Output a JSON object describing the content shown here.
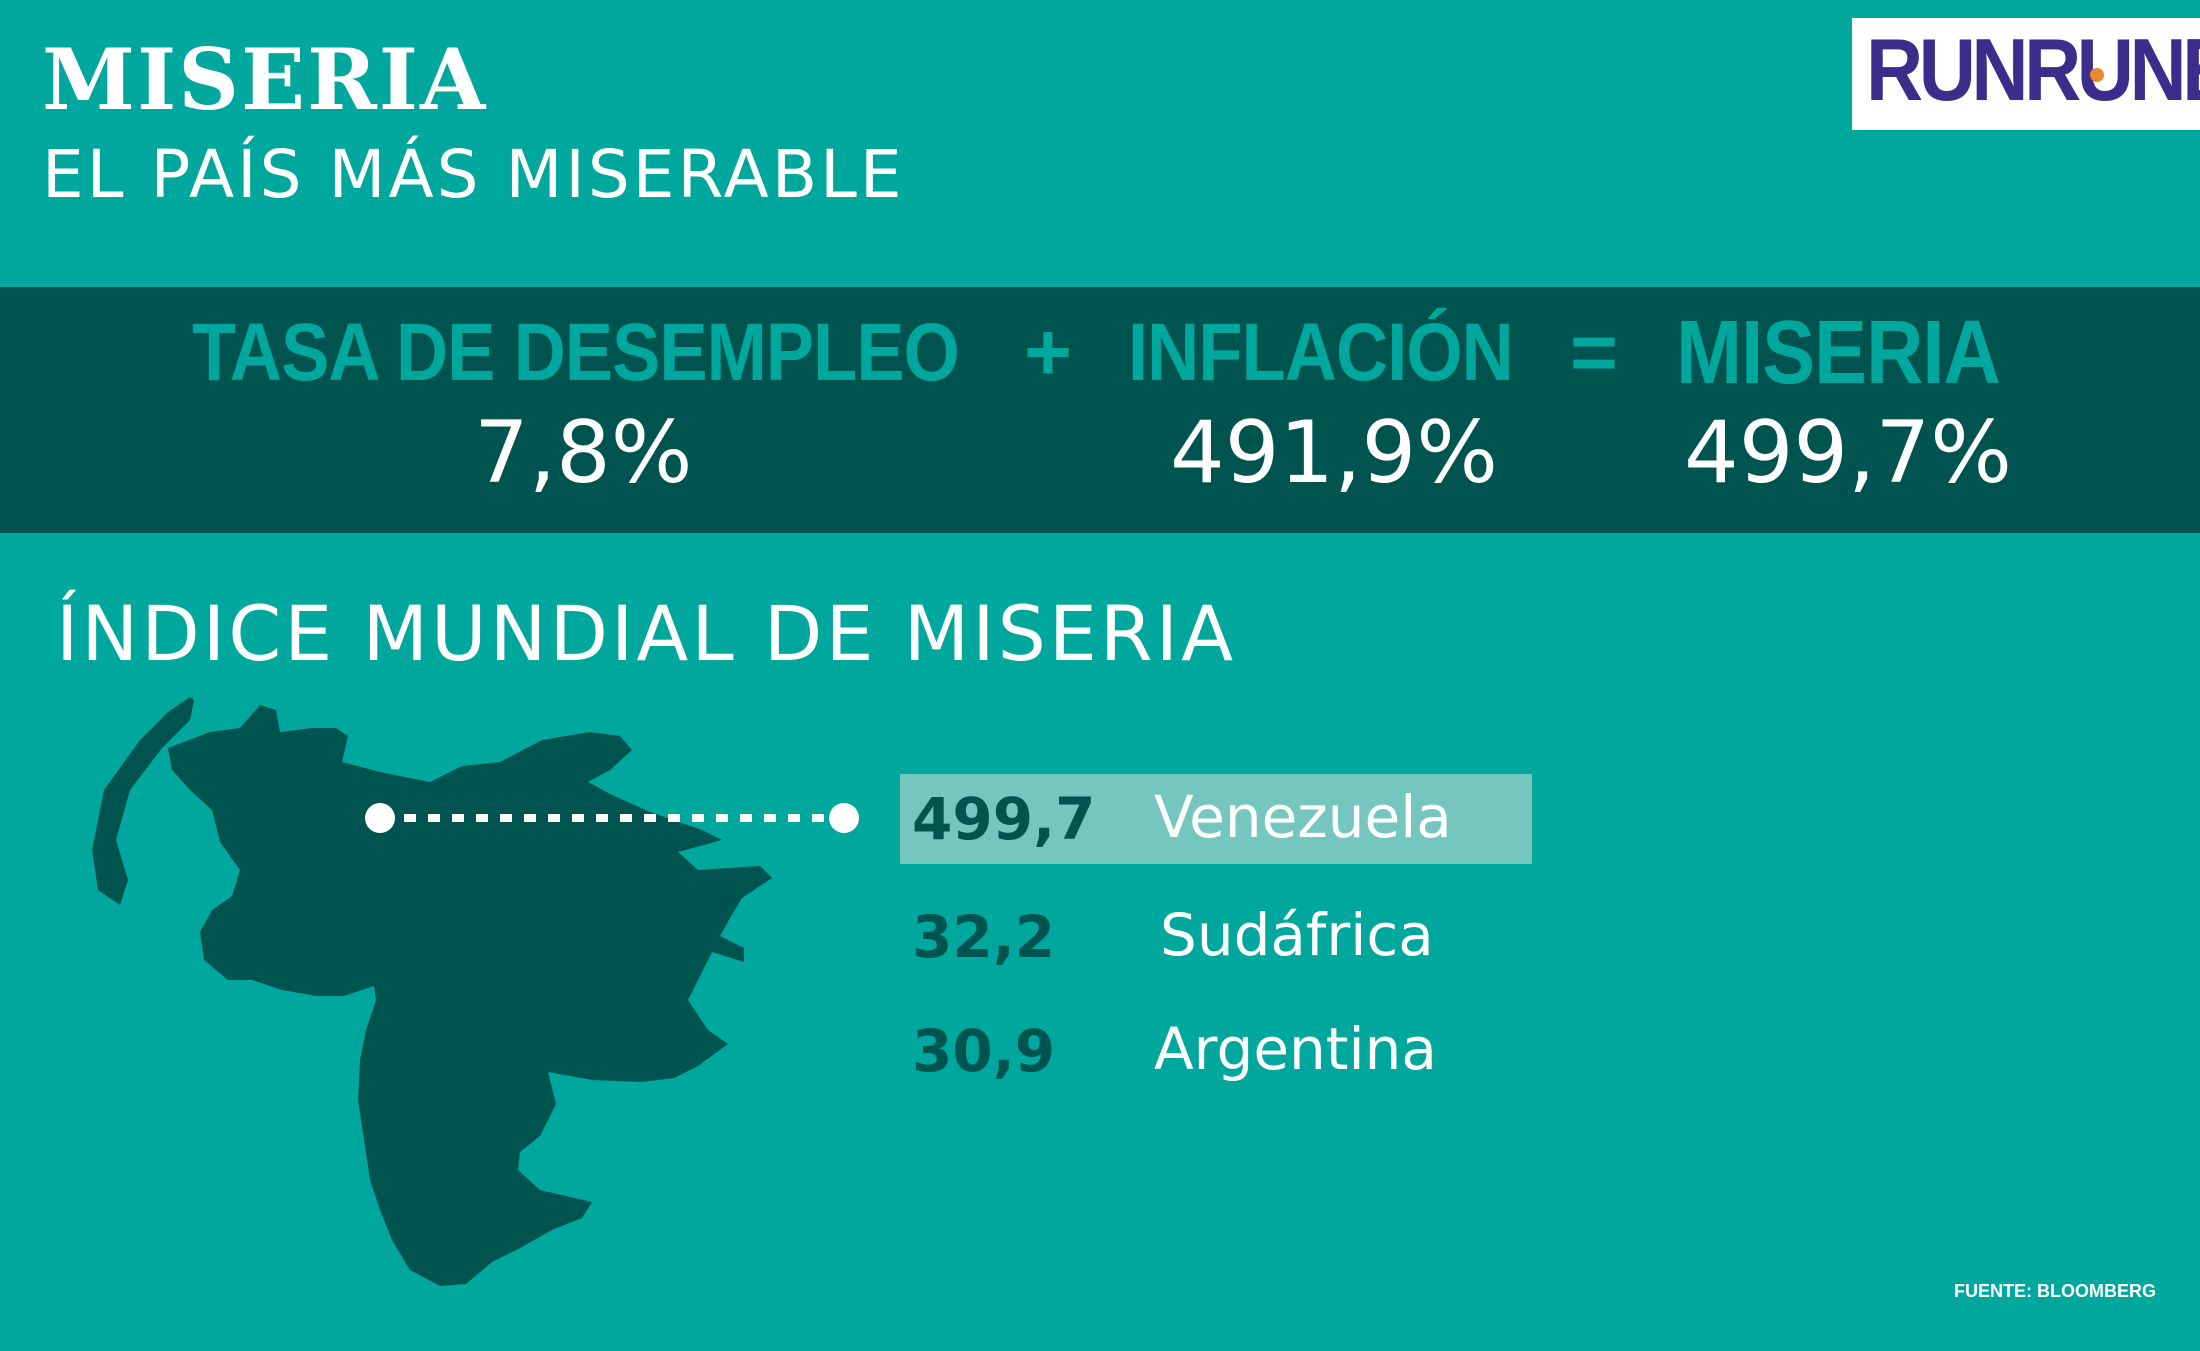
{
  "header": {
    "title": "MISERIA",
    "subtitle": "EL PAÍS MÁS MISERABLE"
  },
  "logo": {
    "text": "RUNRUNES",
    "colors": {
      "text": "#3a2d8c",
      "dot": "#e8882f",
      "background": "#ffffff"
    }
  },
  "equation": {
    "unemployment_label": "TASA DE DESEMPLEO",
    "plus_sign": "+",
    "inflation_label": "INFLACIÓN",
    "equals_sign": "=",
    "misery_label": "MISERIA",
    "unemployment_value": "7,8%",
    "inflation_value": "491,9%",
    "misery_value": "499,7%"
  },
  "ranking": {
    "title": "ÍNDICE MUNDIAL DE MISERIA",
    "items": [
      {
        "score": "499,7",
        "country": "Venezuela",
        "highlighted": true
      },
      {
        "score": "32,2",
        "country": "Sudáfrica",
        "highlighted": false
      },
      {
        "score": "30,9",
        "country": "Argentina",
        "highlighted": false
      }
    ]
  },
  "map": {
    "icon": "venezuela-map-icon",
    "color": "#00544f"
  },
  "source": "FUENTE: BLOOMBERG",
  "colors": {
    "background": "#00a79c",
    "band": "#00544f",
    "highlight": "#74c6bf",
    "text": "#ffffff"
  }
}
